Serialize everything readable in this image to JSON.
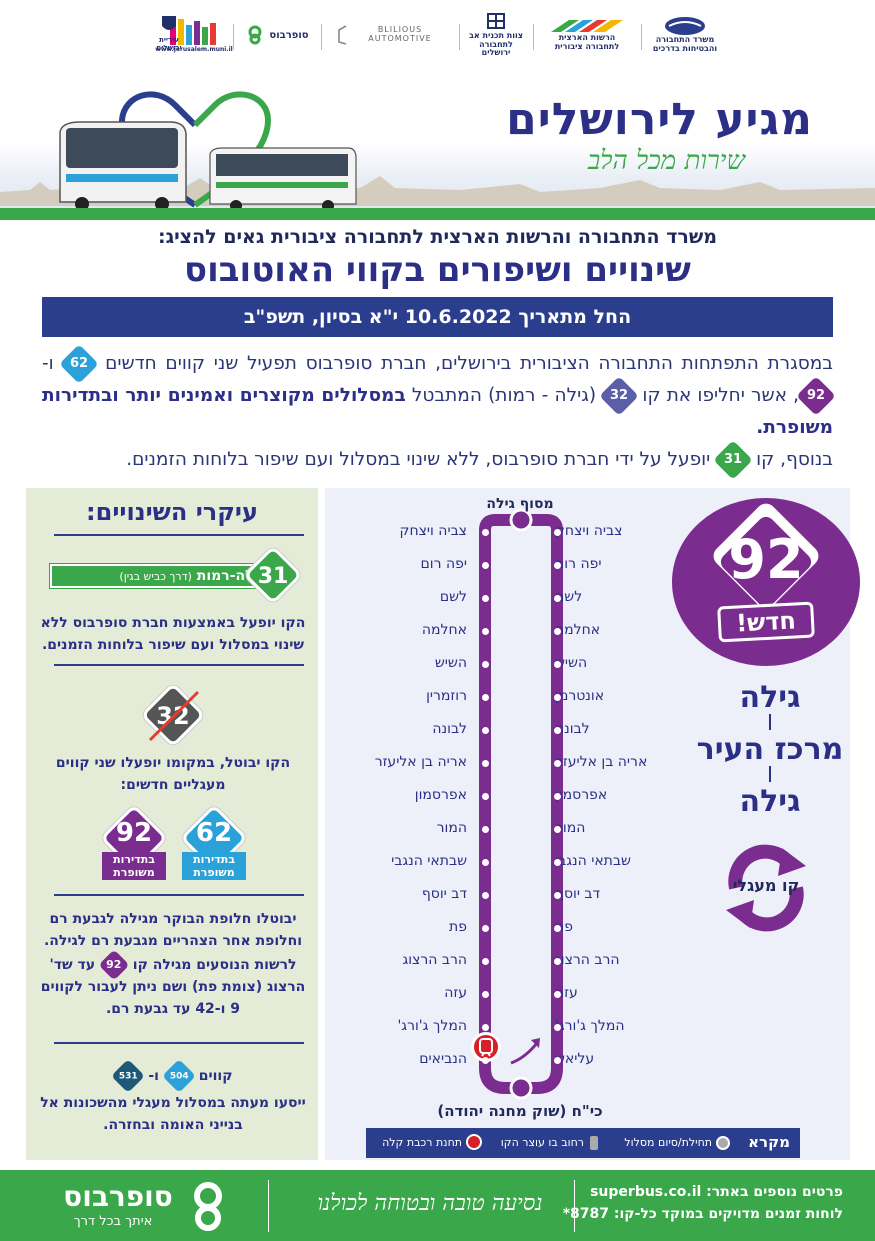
{
  "logos": {
    "ministry": "משרד התחבורה והבטיחות בדרכים",
    "authority": "הרשות הארצית לתחבורה ציבורית",
    "jtmt": "צוות תכנית אב לתחבורה ירושלים",
    "blilious": "BLILIOUS AUTOMOTIVE",
    "superbus": "סופרבוס",
    "jerusalem_url": "www.jerusalem.muni.il",
    "jerusalem_city": "עיריית ירושלים"
  },
  "hero": {
    "title": "מגיע לירושלים",
    "slogan": "שירות מכל הלב"
  },
  "headline": {
    "pre": "משרד התחבורה והרשות הארצית לתחבורה ציבורית גאים להציג:",
    "main": "שינויים ושיפורים בקווי האוטובוס"
  },
  "date_bar": "החל מתאריך 10.6.2022 י\"א בסיון, תשפ\"ב",
  "intro": {
    "p1a": "במסגרת התפתחות התחבורה הציבורית בירושלים, חברת סופרבוס תפעיל שני קווים חדשים",
    "l62": "62",
    "and": "ו-",
    "l92": "92",
    "p1b": ", אשר יחליפו את קו",
    "l32": "32",
    "p1c": "(גילה - רמות) המתבטל",
    "bold": "במסלולים מקוצרים ואמינים יותר ובתדירות משופרת.",
    "p2a": "בנוסף, קו",
    "l31": "31",
    "p2b": "יופעל על ידי חברת סופרבוס, ללא שינוי במסלול ועם שיפור בלוחות הזמנים."
  },
  "left": {
    "title": "עיקרי השינויים:",
    "line31": {
      "num": "31",
      "name": "גילה-רמות",
      "via": "(דרך כביש בגין)"
    },
    "text31": "הקו יופעל באמצעות חברת סופרבוס ללא שינוי במסלול ועם שיפור בלוחות הזמנים.",
    "line32": "32",
    "text32": "הקו יבוטל, במקומו יופעלו שני קווים מעגליים חדשים:",
    "new62": {
      "num": "62",
      "label": "בתדירות משופרת"
    },
    "new92": {
      "num": "92",
      "label": "בתדירות משופרת"
    },
    "text_alt1": "יבוטלו חלופת הבוקר מגילה לגבעת רם וחלופת אחר הצהריים מגבעת רם לגילה.",
    "text_alt2a": "לרשות הנוסעים מגילה קו",
    "text_alt2_line": "92",
    "text_alt2b": "עד שד' הרצוג (צומת פת) ושם ניתן לעבור לקווים 9 ו-42 עד גבעת רם.",
    "lines_label": "קווים",
    "l504": "504",
    "and": "ו-",
    "l531": "531",
    "text_504": "ייסעו מעתה במסלול מעגלי מהשכונות אל בנייני האומה ובחזרה."
  },
  "route": {
    "top_terminal": "מסוף גילה",
    "bottom_terminal": "כי\"ח (שוק מחנה יהודה)",
    "right_stops": [
      "צביה ויצחק",
      "יפה רום",
      "לשם",
      "אחלמה",
      "השיש",
      "אונטרמן",
      "לבונה",
      "אריה בן אליעזר",
      "אפרסמון",
      "המור",
      "שבתאי הנגבי",
      "דב יוסף",
      "פת",
      "הרב הרצוג",
      "עזה",
      "המלך ג'ורג'",
      "עליאש"
    ],
    "left_stops": [
      "צביה ויצחק",
      "יפה רום",
      "לשם",
      "אחלמה",
      "השיש",
      "רוזמרין",
      "לבונה",
      "אריה בן אליעזר",
      "אפרסמון",
      "המור",
      "שבתאי הנגבי",
      "דב יוסף",
      "פת",
      "הרב הרצוג",
      "עזה",
      "המלך ג'ורג'",
      "הנביאים"
    ]
  },
  "badge": {
    "num": "92",
    "new": "חדש!"
  },
  "route_names": [
    "גילה",
    "מרכז העיר",
    "גילה"
  ],
  "circular": "קו מעגלי",
  "legend": {
    "title": "מקרא",
    "start": "תחילת/סיום מסלול",
    "stop": "רחוב בו עוצר הקו",
    "rail": "תחנת רכבת קלה"
  },
  "footer": {
    "brand": "סופרבוס",
    "tagline": "איתך בכל דרך",
    "slogan": "נסיעה טובה ובטוחה לכולנו",
    "info1": "פרטים נוספים באתר: superbus.co.il",
    "info2": "לוחות זמנים מדויקים במוקד כל-קו: 8787*"
  },
  "colors": {
    "navy": "#2b3e8e",
    "green": "#3aa74a",
    "purple": "#7b2c8f",
    "blue": "#2aa1d8"
  }
}
